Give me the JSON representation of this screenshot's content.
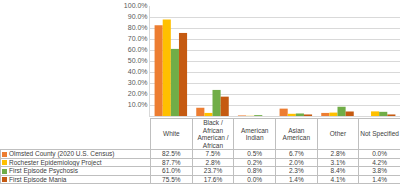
{
  "chart_data": {
    "type": "bar",
    "categories": [
      "White",
      "Black / African American / African",
      "American Indian",
      "Asian American",
      "Other",
      "Not Specified"
    ],
    "series": [
      {
        "name": "Olmsted County (2020 U.S. Census)",
        "color": "#ED7D31",
        "values": [
          82.5,
          7.5,
          0.5,
          6.7,
          2.8,
          0.0
        ],
        "value_labels": [
          "82.5%",
          "7.5%",
          "0.5%",
          "6.7%",
          "2.8%",
          "0.0%"
        ]
      },
      {
        "name": "Rochester Epidemiology Project",
        "color": "#FFC000",
        "values": [
          87.7,
          2.8,
          0.2,
          2.0,
          3.1,
          4.2
        ],
        "value_labels": [
          "87.7%",
          "2.8%",
          "0.2%",
          "2.0%",
          "3.1%",
          "4.2%"
        ]
      },
      {
        "name": "First Episode Psychosis",
        "color": "#70AD47",
        "values": [
          61.0,
          23.7,
          0.8,
          2.3,
          8.4,
          3.8
        ],
        "value_labels": [
          "61.0%",
          "23.7%",
          "0.8%",
          "2.3%",
          "8.4%",
          "3.8%"
        ]
      },
      {
        "name": "First Episode Mania",
        "color": "#C55A11",
        "values": [
          75.5,
          17.6,
          0.0,
          1.4,
          4.1,
          1.4
        ],
        "value_labels": [
          "75.5%",
          "17.6%",
          "0.0%",
          "1.4%",
          "4.1%",
          "1.4%"
        ]
      }
    ],
    "ylim": [
      0,
      100
    ],
    "yticks": [
      {
        "value": 0,
        "label": "0.0%"
      },
      {
        "value": 10,
        "label": "10.0%"
      },
      {
        "value": 20,
        "label": "20.0%"
      },
      {
        "value": 30,
        "label": "30.0%"
      },
      {
        "value": 40,
        "label": "40.0%"
      },
      {
        "value": 50,
        "label": "50.0%"
      },
      {
        "value": 60,
        "label": "60.0%"
      },
      {
        "value": 70,
        "label": "70.0%"
      },
      {
        "value": 80,
        "label": "80.0%"
      },
      {
        "value": 90,
        "label": "90.0%"
      },
      {
        "value": 100,
        "label": "100.0%"
      }
    ],
    "grid": true,
    "tick_labels": "y"
  }
}
